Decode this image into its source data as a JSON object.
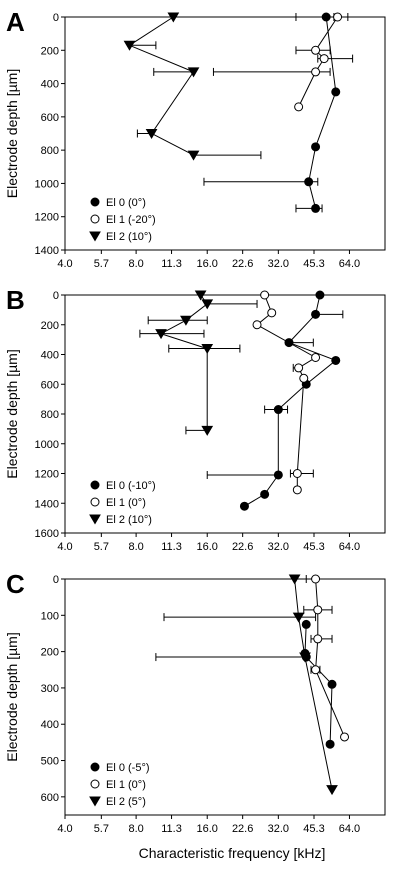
{
  "figure": {
    "xlabel": "Characteristic frequency [kHz]"
  },
  "chart_data": [
    {
      "panel": "A",
      "type": "line",
      "x_scale": "log2",
      "xlim": [
        4.0,
        90.5
      ],
      "x_ticks": [
        "4.0",
        "5.7",
        "8.0",
        "11.3",
        "16.0",
        "22.6",
        "32.0",
        "45.3",
        "64.0"
      ],
      "ylim": [
        0,
        1400
      ],
      "y_inverted": true,
      "y_ticks": [
        "0",
        "200",
        "400",
        "600",
        "800",
        "1000",
        "1200",
        "1400"
      ],
      "ylabel": "Electrode depth [µm]",
      "legend_position": "bottom-left",
      "series": [
        {
          "name": "El 0 (0°)",
          "marker": "filled-circle",
          "points": [
            {
              "x": 51,
              "y": 0,
              "xerr": [
                38,
                55
              ]
            },
            {
              "x": 56,
              "y": 450
            },
            {
              "x": 46,
              "y": 780
            },
            {
              "x": 43,
              "y": 990,
              "xerr": [
                15.5,
                47
              ]
            },
            {
              "x": 46,
              "y": 1150,
              "xerr": [
                38,
                49
              ]
            }
          ]
        },
        {
          "name": "El 1 (-20°)",
          "marker": "open-circle",
          "points": [
            {
              "x": 57,
              "y": 0,
              "xerr": [
                51,
                63
              ]
            },
            {
              "x": 46,
              "y": 200,
              "xerr": [
                38,
                53
              ]
            },
            {
              "x": 50,
              "y": 250,
              "xerr": [
                47,
                66
              ]
            },
            {
              "x": 46,
              "y": 330,
              "xerr": [
                17,
                53
              ]
            },
            {
              "x": 39,
              "y": 540
            }
          ]
        },
        {
          "name": "El 2 (10°)",
          "marker": "filled-triangle-down",
          "points": [
            {
              "x": 11.5,
              "y": 0
            },
            {
              "x": 7.5,
              "y": 170,
              "xerr": [
                7.5,
                9.7
              ]
            },
            {
              "x": 14,
              "y": 330,
              "xerr": [
                9.5,
                14
              ]
            },
            {
              "x": 9.3,
              "y": 700,
              "xerr": [
                8.1,
                9.3
              ]
            },
            {
              "x": 14,
              "y": 830,
              "xerr": [
                14,
                27
              ]
            }
          ]
        }
      ]
    },
    {
      "panel": "B",
      "type": "line",
      "x_scale": "log2",
      "xlim": [
        4.0,
        90.5
      ],
      "x_ticks": [
        "4.0",
        "5.7",
        "8.0",
        "11.3",
        "16.0",
        "22.6",
        "32.0",
        "45.3",
        "64.0"
      ],
      "ylim": [
        0,
        1600
      ],
      "y_inverted": true,
      "y_ticks": [
        "0",
        "200",
        "400",
        "600",
        "800",
        "1000",
        "1200",
        "1400",
        "1600"
      ],
      "ylabel": "Electrode depth [µm]",
      "legend_position": "bottom-left",
      "series": [
        {
          "name": "El 0 (-10°)",
          "marker": "filled-circle",
          "points": [
            {
              "x": 48,
              "y": 0
            },
            {
              "x": 46,
              "y": 130,
              "xerr": [
                46,
                60
              ]
            },
            {
              "x": 35.5,
              "y": 320,
              "xerr": [
                35.5,
                45
              ]
            },
            {
              "x": 56,
              "y": 440
            },
            {
              "x": 42,
              "y": 600
            },
            {
              "x": 32,
              "y": 770,
              "xerr": [
                28,
                35
              ]
            },
            {
              "x": 32,
              "y": 1210,
              "xerr": [
                16,
                32
              ]
            },
            {
              "x": 28,
              "y": 1340
            },
            {
              "x": 23,
              "y": 1420
            }
          ]
        },
        {
          "name": "El 1 (0°)",
          "marker": "open-circle",
          "points": [
            {
              "x": 28,
              "y": 0
            },
            {
              "x": 30,
              "y": 120
            },
            {
              "x": 26,
              "y": 200
            },
            {
              "x": 46,
              "y": 420
            },
            {
              "x": 39,
              "y": 490,
              "xerr": [
                37,
                39
              ]
            },
            {
              "x": 41,
              "y": 560
            },
            {
              "x": 38.5,
              "y": 1200,
              "xerr": [
                36,
                45
              ]
            },
            {
              "x": 38.5,
              "y": 1310
            }
          ]
        },
        {
          "name": "El 2 (10°)",
          "marker": "filled-triangle-down",
          "points": [
            {
              "x": 15,
              "y": 0
            },
            {
              "x": 16,
              "y": 60,
              "xerr": [
                16,
                26
              ]
            },
            {
              "x": 13,
              "y": 170,
              "xerr": [
                9,
                16
              ]
            },
            {
              "x": 10.2,
              "y": 260,
              "xerr": [
                8.3,
                15.5
              ]
            },
            {
              "x": 16,
              "y": 360,
              "xerr": [
                11,
                22
              ]
            },
            {
              "x": 16,
              "y": 910,
              "xerr": [
                13,
                16
              ]
            }
          ]
        }
      ]
    },
    {
      "panel": "C",
      "type": "line",
      "x_scale": "log2",
      "xlim": [
        4.0,
        90.5
      ],
      "x_ticks": [
        "4.0",
        "5.7",
        "8.0",
        "11.3",
        "16.0",
        "22.6",
        "32.0",
        "45.3",
        "64.0"
      ],
      "ylim": [
        0,
        650
      ],
      "y_inverted": true,
      "y_ticks": [
        "0",
        "100",
        "200",
        "300",
        "400",
        "500",
        "600"
      ],
      "ylabel": "Electrode depth [µm]",
      "legend_position": "bottom-left",
      "series": [
        {
          "name": "El 0 (-5°)",
          "marker": "filled-circle",
          "points": [
            {
              "x": 42,
              "y": 125
            },
            {
              "x": 41.5,
              "y": 205
            },
            {
              "x": 42,
              "y": 215
            },
            {
              "x": 54,
              "y": 290
            },
            {
              "x": 53,
              "y": 455
            }
          ]
        },
        {
          "name": "El 1 (0°)",
          "marker": "open-circle",
          "points": [
            {
              "x": 46,
              "y": 0
            },
            {
              "x": 47,
              "y": 85,
              "xerr": [
                41,
                54
              ]
            },
            {
              "x": 47,
              "y": 165,
              "xerr": [
                44,
                54
              ]
            },
            {
              "x": 46,
              "y": 250,
              "xerr": [
                44,
                48
              ]
            },
            {
              "x": 61,
              "y": 435
            }
          ]
        },
        {
          "name": "El 2 (5°)",
          "marker": "filled-triangle-down",
          "points": [
            {
              "x": 37.5,
              "y": 0,
              "xerr": [
                37.5,
                42
              ]
            },
            {
              "x": 39,
              "y": 105,
              "xerr": [
                10.5,
                46
              ]
            },
            {
              "x": 41.5,
              "y": 215,
              "xerr": [
                9.7,
                41.5
              ]
            },
            {
              "x": 54,
              "y": 580
            }
          ]
        }
      ]
    }
  ]
}
